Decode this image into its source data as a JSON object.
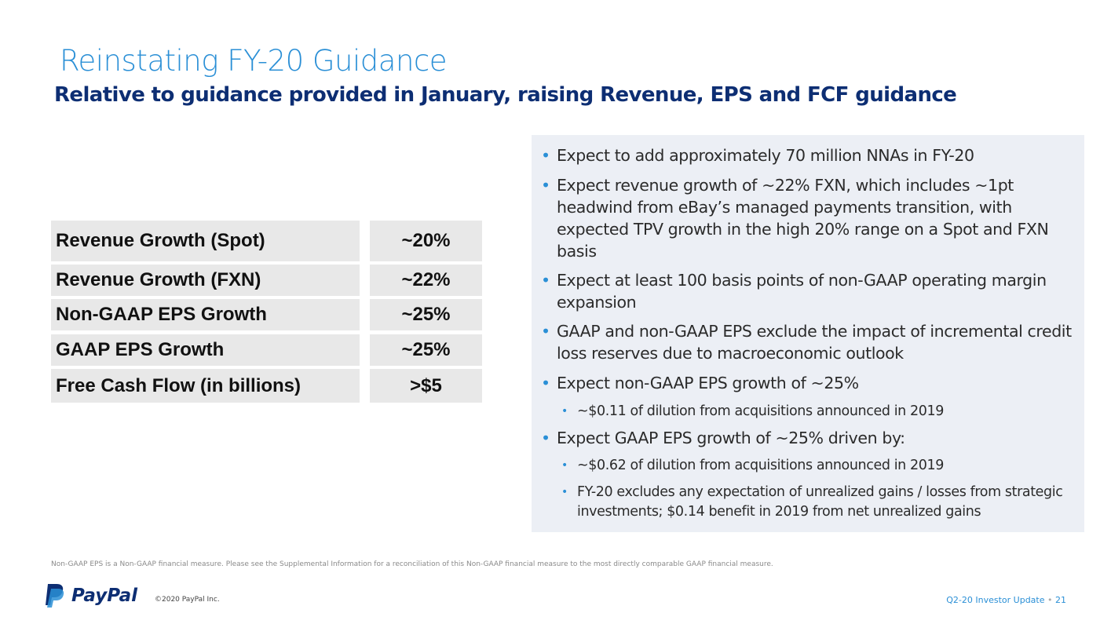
{
  "title": "Reinstating FY-20 Guidance",
  "subtitle": "Relative to guidance provided in January, raising Revenue, EPS and FCF guidance",
  "table": [
    {
      "label": "Revenue Growth (Spot)",
      "value": "~20%"
    },
    {
      "label": "Revenue Growth (FXN)",
      "value": "~22%"
    },
    {
      "label": "Non-GAAP EPS Growth",
      "value": "~25%"
    },
    {
      "label": "GAAP EPS Growth",
      "value": "~25%"
    },
    {
      "label": "Free Cash Flow (in billions)",
      "value": ">$5"
    }
  ],
  "bullets": [
    "Expect to add approximately 70 million NNAs in FY-20",
    "Expect revenue growth of ~22% FXN, which includes ~1pt headwind from eBay’s managed payments transition, with expected TPV growth in the high 20% range on a Spot and FXN basis",
    "Expect at least 100 basis points of non-GAAP operating margin expansion",
    "GAAP and non-GAAP EPS exclude the impact of incremental credit loss reserves due to macroeconomic outlook",
    "Expect non-GAAP EPS growth of ~25%",
    "~$0.11 of dilution from acquisitions announced in 2019",
    "Expect GAAP EPS growth of ~25% driven by:",
    "~$0.62 of dilution from acquisitions announced in 2019",
    "FY-20 excludes any expectation of unrealized gains / losses from strategic investments; $0.14 benefit in 2019 from net unrealized gains"
  ],
  "footnote": "Non-GAAP EPS is a Non-GAAP financial measure. Please see the Supplemental Information for a  reconciliation of this Non-GAAP financial measure to the most directly comparable GAAP financial measure.",
  "logo": "PayPal",
  "copyright": "©2020 PayPal Inc.",
  "page_label": "Q2-20 Investor Update",
  "page_number": "21"
}
